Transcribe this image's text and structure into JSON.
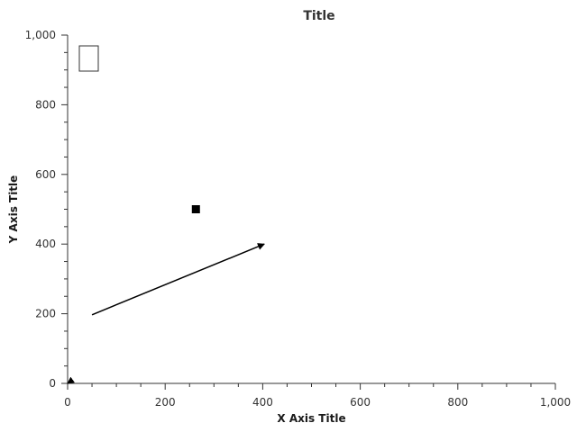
{
  "chart_data": {
    "type": "scatter",
    "title": "Title",
    "xlabel": "X Axis Title",
    "ylabel": "Y Axis Title",
    "xlim": [
      0,
      1000
    ],
    "ylim": [
      0,
      1000
    ],
    "x_ticks": [
      0,
      200,
      400,
      600,
      800,
      1000
    ],
    "y_ticks": [
      0,
      200,
      400,
      600,
      800,
      1000
    ],
    "x_tick_labels": [
      "0",
      "200",
      "400",
      "600",
      "800",
      "1,000"
    ],
    "y_tick_labels": [
      "0",
      "200",
      "400",
      "600",
      "800",
      "1,000"
    ],
    "x_minor_step": 50,
    "y_minor_step": 50,
    "grid": false,
    "legend": {
      "visible": true,
      "placement": "top-left",
      "entries": []
    },
    "annotations": [
      {
        "kind": "arrow",
        "from": {
          "x": 50,
          "y": 197
        },
        "to": {
          "x": 403,
          "y": 400
        }
      },
      {
        "kind": "marker",
        "shape": "square",
        "x": 263,
        "y": 500
      },
      {
        "kind": "arrow",
        "from": {
          "x": 4,
          "y": 4
        },
        "to": {
          "x": 0,
          "y": 0
        }
      }
    ],
    "colors": {
      "axis": "#333333",
      "annotation": "#000000",
      "background": "#ffffff"
    }
  }
}
